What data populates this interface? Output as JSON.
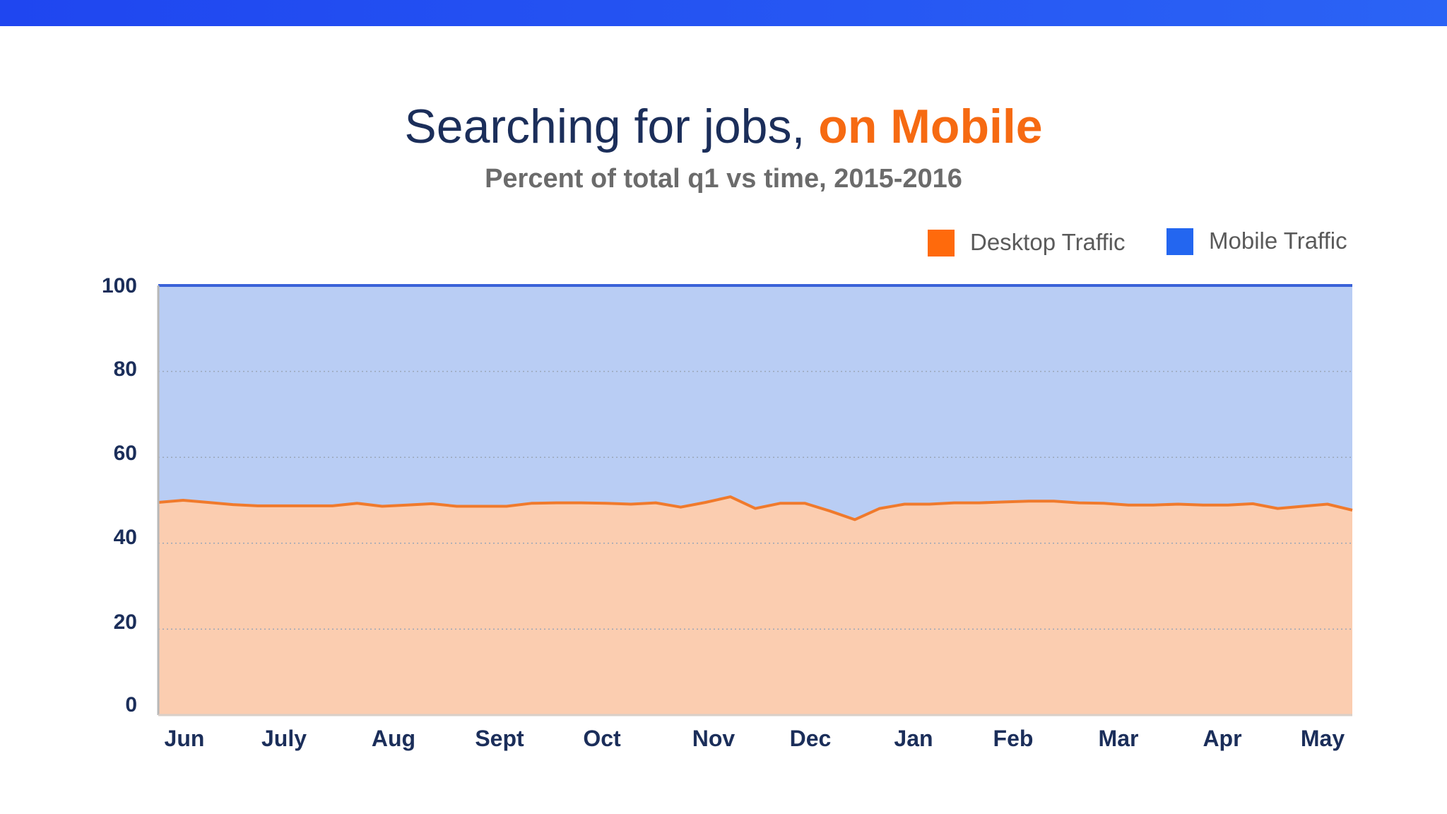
{
  "title_main": "Searching for jobs,",
  "title_accent": "on Mobile",
  "subtitle": "Percent of total q1 vs time,  2015-2016",
  "colors": {
    "top_bar": "#2355f3",
    "title": "#1b2e5a",
    "accent": "#f66a12",
    "desktop_line": "#f07a2c",
    "desktop_fill": "#fbcdb0",
    "mobile_fill": "#b9cdf4",
    "mobile_line": "#3a62d8",
    "legend_desktop": "#ff6a0c",
    "legend_mobile": "#2366f0"
  },
  "chart_data": {
    "type": "area",
    "x_ticks": [
      "Jun",
      "July",
      "Aug",
      "Sept",
      "Oct",
      "Nov",
      "Dec",
      "Jan",
      "Feb",
      "Mar",
      "Apr",
      "May"
    ],
    "y_ticks": [
      0,
      20,
      40,
      60,
      80,
      100
    ],
    "ylim": [
      0,
      100
    ],
    "grid": "dotted horizontal",
    "legend_position": "top-right",
    "stacked": true,
    "series": [
      {
        "name": "Desktop Traffic",
        "values": [
          49.5,
          50,
          49.5,
          49,
          48.7,
          48.7,
          48.7,
          48.7,
          49.3,
          48.6,
          48.9,
          49.2,
          48.6,
          48.6,
          48.6,
          49.3,
          49.4,
          49.4,
          49.3,
          49.1,
          49.4,
          48.4,
          49.5,
          50.8,
          48.1,
          49.3,
          49.3,
          47.5,
          45.5,
          48.1,
          49.1,
          49.1,
          49.4,
          49.4,
          49.6,
          49.8,
          49.8,
          49.4,
          49.3,
          48.9,
          48.9,
          49.1,
          48.9,
          48.9,
          49.2,
          48.1,
          48.6,
          49.1,
          47.7
        ]
      },
      {
        "name": "Mobile Traffic",
        "values": [
          50.5,
          50,
          50.5,
          51,
          51.3,
          51.3,
          51.3,
          51.3,
          50.7,
          51.4,
          51.1,
          50.8,
          51.4,
          51.4,
          51.4,
          50.7,
          50.6,
          50.6,
          50.7,
          50.9,
          50.6,
          51.6,
          50.5,
          49.2,
          51.9,
          50.7,
          50.7,
          52.5,
          54.5,
          51.9,
          50.9,
          50.9,
          50.6,
          50.6,
          50.4,
          50.2,
          50.2,
          50.6,
          50.7,
          51.1,
          51.1,
          50.9,
          51.1,
          51.1,
          50.8,
          51.9,
          51.4,
          50.9,
          52.3
        ]
      }
    ]
  }
}
